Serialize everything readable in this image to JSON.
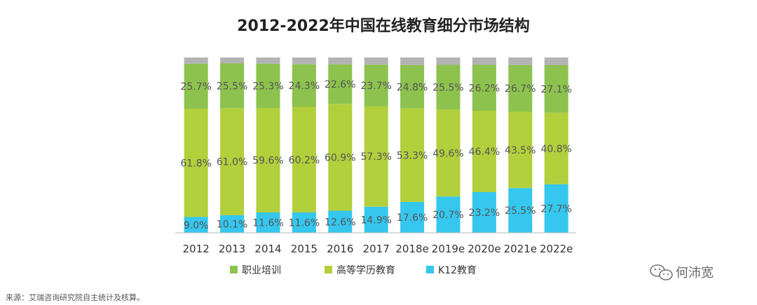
{
  "chart_data": {
    "type": "bar",
    "stacked": true,
    "percent": true,
    "title": "2012-2022年中国在线教育细分市场结构",
    "categories": [
      "2012",
      "2013",
      "2014",
      "2015",
      "2016",
      "2017",
      "2018e",
      "2019e",
      "2020e",
      "2021e",
      "2022e"
    ],
    "series": [
      {
        "name": "K12教育",
        "color": "#35c7ee",
        "values": [
          9.0,
          10.1,
          11.6,
          11.6,
          12.6,
          14.9,
          17.6,
          20.7,
          23.2,
          25.5,
          27.7
        ],
        "labels": [
          "9.0%",
          "10.1%",
          "11.6%",
          "11.6%",
          "12.6%",
          "14.9%",
          "17.6%",
          "20.7%",
          "23.2%",
          "25.5%",
          "27.7%"
        ]
      },
      {
        "name": "高等学历教育",
        "color": "#b2cf3c",
        "values": [
          61.8,
          61.0,
          59.6,
          60.2,
          60.9,
          57.3,
          53.3,
          49.6,
          46.4,
          43.5,
          40.8
        ],
        "labels": [
          "61.8%",
          "61.0%",
          "59.6%",
          "60.2%",
          "60.9%",
          "57.3%",
          "53.3%",
          "49.6%",
          "46.4%",
          "43.5%",
          "40.8%"
        ]
      },
      {
        "name": "职业培训",
        "color": "#8dc24e",
        "values": [
          25.7,
          25.5,
          25.3,
          24.3,
          22.6,
          23.7,
          24.8,
          25.5,
          26.2,
          26.7,
          27.1
        ],
        "labels": [
          "25.7%",
          "25.5%",
          "25.3%",
          "24.3%",
          "22.6%",
          "23.7%",
          "24.8%",
          "25.5%",
          "26.2%",
          "26.7%",
          "27.1%"
        ]
      },
      {
        "values": [
          3.5,
          3.4,
          3.5,
          3.9,
          3.9,
          4.1,
          4.3,
          4.2,
          4.2,
          4.3,
          4.4
        ],
        "color": "#b3b3b3"
      }
    ],
    "legend": [
      "职业培训",
      "高等学历教育",
      "K12教育"
    ],
    "legend_placement": "bottom",
    "ylim": [
      0,
      100
    ],
    "grid": false
  },
  "footer": {
    "source": "来源：艾瑞咨询研究院自主统计及核算。",
    "watermark": "何沛宽"
  },
  "colors": {
    "axis": "#bbbbbb",
    "text": "#333333"
  }
}
